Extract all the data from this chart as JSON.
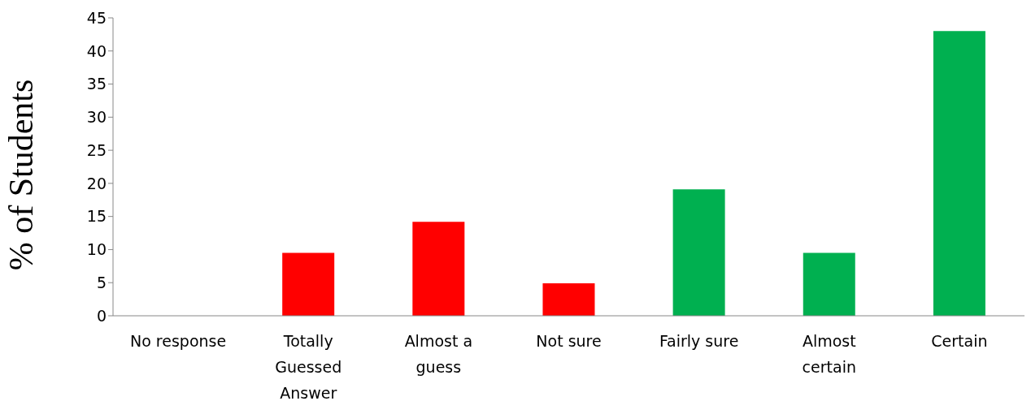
{
  "chart_data": {
    "type": "bar",
    "ylabel": "% of Students",
    "categories": [
      "No response",
      "Totally Guessed Answer",
      "Almost a guess",
      "Not sure",
      "Fairly sure",
      "Almost certain",
      "Certain"
    ],
    "values": [
      0,
      9.5,
      14.2,
      4.9,
      19.1,
      9.5,
      43.0
    ],
    "colors": [
      "#ff0000",
      "#ff0000",
      "#ff0000",
      "#ff0000",
      "#00b050",
      "#00b050",
      "#00b050"
    ],
    "ylim": [
      0,
      45
    ],
    "yticks": [
      0,
      5,
      10,
      15,
      20,
      25,
      30,
      35,
      40,
      45
    ],
    "grid": false,
    "legend": false
  }
}
